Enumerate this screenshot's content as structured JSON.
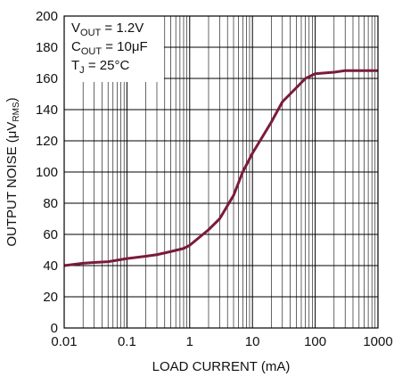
{
  "chart_data": {
    "type": "line",
    "x_scale": "log",
    "xlim": [
      0.01,
      1000
    ],
    "ylim": [
      0,
      200
    ],
    "grid": true,
    "xlabel": "LOAD CURRENT (mA)",
    "ylabel": "OUTPUT NOISE (μV",
    "ylabel_sub": "RMS",
    "ylabel_close": ")",
    "x_ticks": [
      0.01,
      0.1,
      1,
      10,
      100,
      1000
    ],
    "x_tick_labels": [
      "0.01",
      "0.1",
      "1",
      "10",
      "100",
      "1000"
    ],
    "y_ticks": [
      0,
      20,
      40,
      60,
      80,
      100,
      120,
      140,
      160,
      180,
      200
    ],
    "y_tick_labels": [
      "0",
      "20",
      "40",
      "60",
      "80",
      "100",
      "120",
      "140",
      "160",
      "180",
      "200"
    ],
    "series": [
      {
        "color": "#7a1b3a",
        "points": [
          [
            0.01,
            40
          ],
          [
            0.02,
            41.5
          ],
          [
            0.03,
            42
          ],
          [
            0.05,
            42.5
          ],
          [
            0.1,
            44.5
          ],
          [
            0.2,
            46
          ],
          [
            0.3,
            47
          ],
          [
            0.5,
            49
          ],
          [
            0.8,
            51
          ],
          [
            1,
            53
          ],
          [
            2,
            63
          ],
          [
            3,
            70
          ],
          [
            5,
            85
          ],
          [
            7,
            100
          ],
          [
            10,
            112
          ],
          [
            20,
            132
          ],
          [
            30,
            145
          ],
          [
            50,
            154
          ],
          [
            70,
            160
          ],
          [
            100,
            163
          ],
          [
            200,
            164
          ],
          [
            300,
            165
          ],
          [
            500,
            165
          ],
          [
            1000,
            165
          ]
        ]
      }
    ],
    "annotations": [
      {
        "main": "V",
        "sub": "OUT",
        "rest": " = 1.2V"
      },
      {
        "main": "C",
        "sub": "OUT",
        "rest": " = 10μF"
      },
      {
        "main": "T",
        "sub": "J",
        "rest": " = 25°C"
      }
    ]
  }
}
